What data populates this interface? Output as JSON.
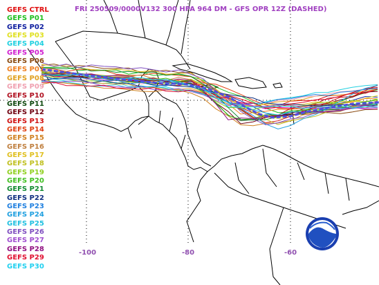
{
  "title": "FRI 250509/0000V132  300 HPA 964 DM - GFS OPR 12Z (DASHED)",
  "legend": [
    {
      "label": "GEFS CTRL",
      "color": "#e01010"
    },
    {
      "label": "GEFS P01",
      "color": "#20c020"
    },
    {
      "label": "GEFS P02",
      "color": "#1020a0"
    },
    {
      "label": "GEFS P03",
      "color": "#e0e020"
    },
    {
      "label": "GEFS P04",
      "color": "#20d0e0"
    },
    {
      "label": "GEFS P05",
      "color": "#d020d0"
    },
    {
      "label": "GEFS P06",
      "color": "#8a4a10"
    },
    {
      "label": "GEFS P07",
      "color": "#f08020"
    },
    {
      "label": "GEFS P08",
      "color": "#e0a020"
    },
    {
      "label": "GEFS P09",
      "color": "#f0a0b0"
    },
    {
      "label": "GEFS P10",
      "color": "#b01020"
    },
    {
      "label": "GEFS P11",
      "color": "#104a10"
    },
    {
      "label": "GEFS P12",
      "color": "#700010"
    },
    {
      "label": "GEFS P13",
      "color": "#d01010"
    },
    {
      "label": "GEFS P14",
      "color": "#e04010"
    },
    {
      "label": "GEFS P15",
      "color": "#d08020"
    },
    {
      "label": "GEFS P16",
      "color": "#c08040"
    },
    {
      "label": "GEFS P17",
      "color": "#e0c020"
    },
    {
      "label": "GEFS P18",
      "color": "#c0c020"
    },
    {
      "label": "GEFS P19",
      "color": "#90d020"
    },
    {
      "label": "GEFS P20",
      "color": "#40c020"
    },
    {
      "label": "GEFS P21",
      "color": "#108a30"
    },
    {
      "label": "GEFS P22",
      "color": "#103080"
    },
    {
      "label": "GEFS P23",
      "color": "#2080e0"
    },
    {
      "label": "GEFS P24",
      "color": "#20a0e0"
    },
    {
      "label": "GEFS P25",
      "color": "#20c0e0"
    },
    {
      "label": "GEFS P26",
      "color": "#8050c0"
    },
    {
      "label": "GEFS P27",
      "color": "#a050d0"
    },
    {
      "label": "GEFS P28",
      "color": "#901080"
    },
    {
      "label": "GEFS P29",
      "color": "#e01030"
    },
    {
      "label": "GEFS P30",
      "color": "#20d0f0"
    }
  ],
  "longitude_labels": [
    "-100",
    "-80",
    "-60"
  ],
  "logo": {
    "text": "NOAA",
    "icon": "noaa-logo"
  }
}
